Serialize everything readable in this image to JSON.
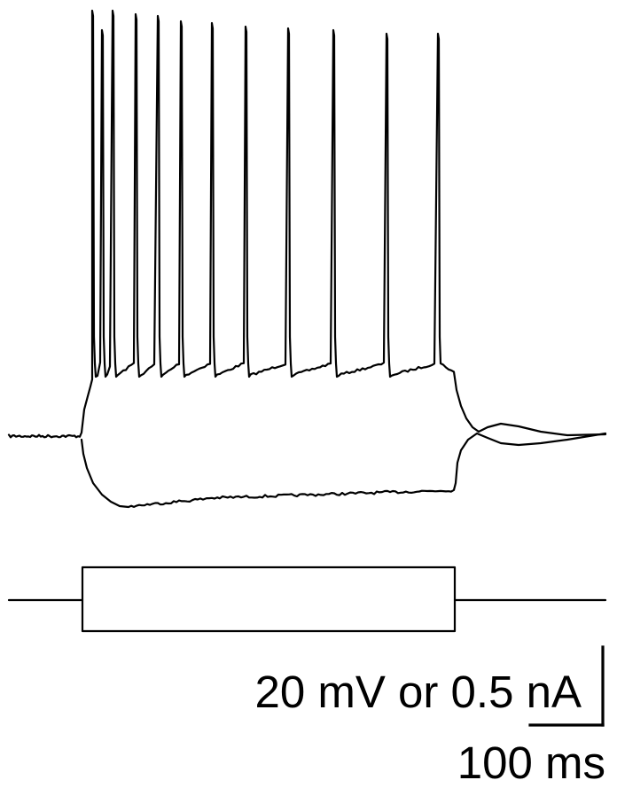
{
  "scale_bar": {
    "vertical_label": "20 mV or 0.5 nA",
    "horizontal_label": "100 ms"
  },
  "traces": {
    "depolarizing": {
      "spike_count": 12
    }
  },
  "stimulus": {
    "steps": 2
  }
}
